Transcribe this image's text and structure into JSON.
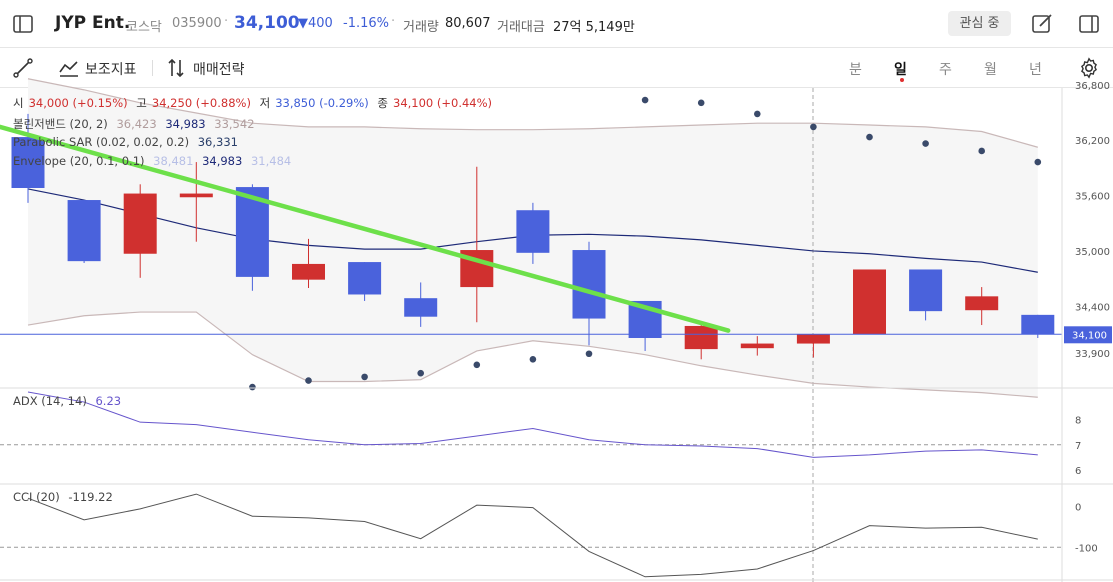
{
  "header": {
    "name": "JYP Ent.",
    "market": "코스닥",
    "code": "035900",
    "price": "34,100",
    "change": "▼400",
    "change_pct": "-1.16%",
    "volume_label": "거래량",
    "volume": "80,607",
    "amount_label": "거래대금",
    "amount": "27억 5,149만",
    "watch_label": "관심 중"
  },
  "toolbar": {
    "indicator_label": "보조지표",
    "strategy_label": "매매전략",
    "periods": [
      "분",
      "일",
      "주",
      "월",
      "년"
    ],
    "active_period": "일"
  },
  "ohlc": {
    "open_label": "시",
    "open": "34,000 (+0.15%)",
    "high_label": "고",
    "high": "34,250 (+0.88%)",
    "low_label": "저",
    "low": "33,850 (-0.29%)",
    "close_label": "종",
    "close": "34,100 (+0.44%)"
  },
  "colors": {
    "up": "#d0302f",
    "down": "#4a62dc",
    "mid_band": "#1e2a78",
    "outer_band": "#c9b8b8",
    "trendline": "#6de04a",
    "adx": "#6655cc",
    "cci": "#555555"
  },
  "chart_data": [
    {
      "type": "candlestick",
      "price_axis_ticks": [
        36200,
        35600,
        35000,
        34400,
        33900
      ],
      "current_price": 34100,
      "current_price_label": "34,100",
      "ylim": [
        33520,
        36760
      ],
      "candles": [
        {
          "o": 36230,
          "h": 36480,
          "l": 35520,
          "c": 35680
        },
        {
          "o": 35550,
          "h": 35550,
          "l": 34870,
          "c": 34890
        },
        {
          "o": 34970,
          "h": 35720,
          "l": 34710,
          "c": 35620
        },
        {
          "o": 35580,
          "h": 35960,
          "l": 35100,
          "c": 35620
        },
        {
          "o": 35690,
          "h": 35720,
          "l": 34570,
          "c": 34720
        },
        {
          "o": 34690,
          "h": 35130,
          "l": 34600,
          "c": 34860
        },
        {
          "o": 34880,
          "h": 34880,
          "l": 34460,
          "c": 34530
        },
        {
          "o": 34490,
          "h": 34660,
          "l": 34180,
          "c": 34290
        },
        {
          "o": 34610,
          "h": 35910,
          "l": 34230,
          "c": 35010
        },
        {
          "o": 35440,
          "h": 35520,
          "l": 34860,
          "c": 34980
        },
        {
          "o": 35010,
          "h": 35100,
          "l": 33980,
          "c": 34270
        },
        {
          "o": 34460,
          "h": 34460,
          "l": 33920,
          "c": 34060
        },
        {
          "o": 33940,
          "h": 34200,
          "l": 33830,
          "c": 34190
        },
        {
          "o": 33950,
          "h": 34080,
          "l": 33870,
          "c": 34000
        },
        {
          "o": 34000,
          "h": 34080,
          "l": 33850,
          "c": 34100
        },
        {
          "o": 34100,
          "h": 34800,
          "l": 34100,
          "c": 34800
        },
        {
          "o": 34800,
          "h": 34800,
          "l": 34250,
          "c": 34350
        },
        {
          "o": 34360,
          "h": 34610,
          "l": 34200,
          "c": 34510
        },
        {
          "o": 34310,
          "h": 34310,
          "l": 34060,
          "c": 34100
        }
      ],
      "bollinger": {
        "label": "볼린저밴드 (20, 2)",
        "upper": "36,423",
        "middle": "34,983",
        "lower": "33,542",
        "upper_series": [
          36860,
          36740,
          36600,
          36490,
          36380,
          36340,
          36340,
          36320,
          36310,
          36310,
          36320,
          36340,
          36360,
          36380,
          36380,
          36360,
          36340,
          36290,
          36120
        ],
        "middle_series": [
          35670,
          35550,
          35400,
          35250,
          35130,
          35060,
          35020,
          35020,
          35100,
          35170,
          35180,
          35160,
          35120,
          35060,
          35000,
          34970,
          34920,
          34880,
          34770
        ],
        "lower_series": [
          34200,
          34300,
          34340,
          34340,
          33880,
          33590,
          33590,
          33610,
          33920,
          34030,
          33970,
          33880,
          33760,
          33660,
          33570,
          33530,
          33500,
          33470,
          33420
        ]
      },
      "sar": {
        "label": "Parabolic SAR (0.02, 0.02, 0.2)",
        "value": "36,331",
        "series": [
          null,
          null,
          null,
          null,
          33530,
          33600,
          33640,
          33680,
          33770,
          33830,
          33890,
          36630,
          36600,
          36480,
          36340,
          36230,
          36160,
          36080,
          35960
        ]
      },
      "envelope": {
        "label": "Envelope (20, 0.1, 0.1)",
        "upper": "38,481",
        "middle": "34,983",
        "lower": "31,484"
      },
      "trendline": {
        "from": [
          0,
          36340
        ],
        "to": [
          12,
          34140
        ]
      }
    },
    {
      "type": "line",
      "name": "ADX (14, 14)",
      "value": "6.23",
      "axis_ticks": [
        8,
        7,
        6
      ],
      "ylim": [
        5.6,
        9.1
      ],
      "series": [
        9.1,
        8.7,
        7.9,
        7.8,
        7.5,
        7.2,
        7.0,
        7.05,
        7.35,
        7.65,
        7.2,
        7.0,
        6.95,
        6.85,
        6.5,
        6.6,
        6.75,
        6.8,
        6.6
      ]
    },
    {
      "type": "line",
      "name": "CCI (20)",
      "value": "-119.22",
      "axis_ticks": [
        0,
        -100
      ],
      "ylim": [
        -175,
        40
      ],
      "series": [
        20,
        -33,
        -6,
        30,
        -24,
        -28,
        -37,
        -79,
        3,
        -3,
        -110,
        -172,
        -166,
        -153,
        -108,
        -47,
        -53,
        -51,
        -80
      ]
    }
  ]
}
